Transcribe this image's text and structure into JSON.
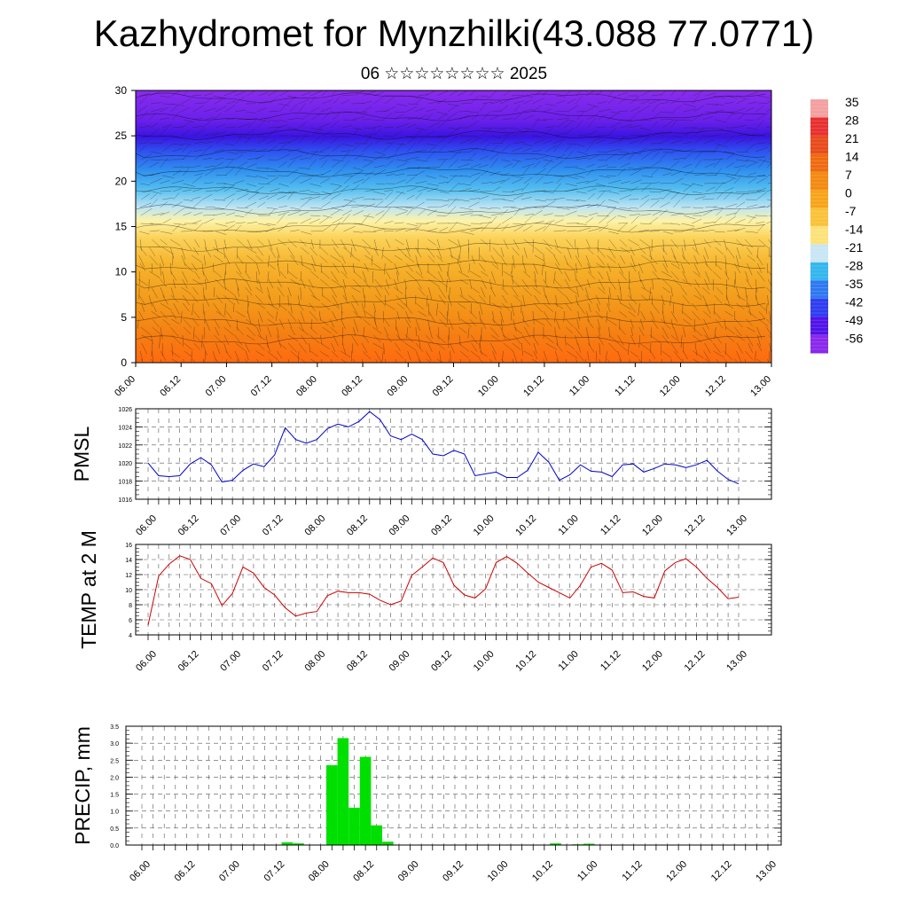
{
  "title": "Kazhydromet for Mynzhilki(43.088 77.0771)",
  "subtitle": "06 ☆☆☆☆☆☆☆☆ 2025",
  "time_labels": [
    "06.00",
    "06.12",
    "07.00",
    "07.12",
    "08.00",
    "08.12",
    "09.00",
    "09.12",
    "10.00",
    "10.12",
    "11.00",
    "11.12",
    "12.00",
    "12.12",
    "13.00"
  ],
  "colorbar": {
    "labels": [
      "35",
      "28",
      "21",
      "14",
      "7",
      "0",
      "-7",
      "-14",
      "-21",
      "-28",
      "-35",
      "-42",
      "-49",
      "-56"
    ],
    "colors": [
      "#f4a0a0",
      "#e83030",
      "#e84a1c",
      "#ef6a10",
      "#f38a12",
      "#f7a41c",
      "#fac23a",
      "#fde27a",
      "#c8e6f4",
      "#34b6ee",
      "#2f78f0",
      "#2f3cf0",
      "#5014e8",
      "#8a28ec"
    ]
  },
  "chart_data": [
    {
      "type": "heatmap",
      "title": "",
      "ylim": [
        0,
        30
      ],
      "yticks": [
        0,
        5,
        10,
        15,
        20,
        25,
        30
      ],
      "x_categories": [
        "06.00",
        "06.12",
        "07.00",
        "07.12",
        "08.00",
        "08.12",
        "09.00",
        "09.12",
        "10.00",
        "10.12",
        "11.00",
        "11.12",
        "12.00",
        "12.12",
        "13.00"
      ],
      "note": "vertical temperature cross-section with wind barbs",
      "colorbar_range": [
        -56,
        35
      ]
    },
    {
      "type": "line",
      "ylabel": "PMSL",
      "ylim": [
        1016,
        1026
      ],
      "yticks": [
        1016,
        1018,
        1020,
        1022,
        1024,
        1026
      ],
      "x_range": [
        0,
        168
      ],
      "color": "#0000cc",
      "series": [
        {
          "values": [
            1020.0,
            1018.6,
            1018.5,
            1018.6,
            1019.9,
            1020.6,
            1019.8,
            1017.9,
            1018.1,
            1019.2,
            1019.9,
            1019.6,
            1020.9,
            1023.9,
            1022.6,
            1022.2,
            1022.6,
            1023.8,
            1024.3,
            1024.0,
            1024.6,
            1025.7,
            1024.8,
            1023.0,
            1022.6,
            1023.2,
            1022.6,
            1021.0,
            1020.8,
            1021.4,
            1021.0,
            1018.6,
            1018.8,
            1019.0,
            1018.4,
            1018.4,
            1019.2,
            1021.2,
            1020.1,
            1018.1,
            1018.7,
            1019.8,
            1019.1,
            1019.0,
            1018.5,
            1019.8,
            1019.9,
            1019.0,
            1019.4,
            1019.9,
            1019.8,
            1019.5,
            1019.8,
            1020.3,
            1019.1,
            1018.2,
            1017.7
          ]
        }
      ]
    },
    {
      "type": "line",
      "ylabel": "TEMP at 2 M",
      "ylim": [
        4,
        16
      ],
      "yticks": [
        4,
        6,
        8,
        10,
        12,
        14,
        16
      ],
      "x_range": [
        0,
        168
      ],
      "color": "#cc0000",
      "series": [
        {
          "values": [
            5.3,
            11.8,
            13.4,
            14.5,
            14.0,
            11.5,
            10.8,
            7.9,
            9.5,
            13.0,
            12.2,
            10.3,
            9.3,
            7.6,
            6.5,
            6.9,
            7.1,
            9.2,
            9.8,
            9.6,
            9.6,
            9.4,
            8.6,
            8.0,
            8.5,
            11.9,
            13.0,
            14.2,
            13.6,
            10.6,
            9.3,
            8.9,
            10.1,
            13.6,
            14.4,
            13.5,
            12.2,
            11.0,
            10.3,
            9.6,
            8.9,
            10.6,
            13.0,
            13.5,
            12.6,
            9.6,
            9.7,
            9.1,
            8.9,
            12.5,
            13.6,
            14.1,
            13.0,
            11.5,
            10.3,
            8.8,
            9.0
          ]
        }
      ]
    },
    {
      "type": "bar",
      "ylabel": "PRECIP, mm",
      "ylim": [
        0,
        3.5
      ],
      "yticks": [
        0.0,
        0.5,
        1.0,
        1.5,
        2.0,
        2.5,
        3.0,
        3.5
      ],
      "x_range": [
        0,
        168
      ],
      "color": "#00e000",
      "bars": [
        {
          "t": 39,
          "v": 0.08
        },
        {
          "t": 42,
          "v": 0.05
        },
        {
          "t": 51,
          "v": 2.35
        },
        {
          "t": 54,
          "v": 3.15
        },
        {
          "t": 57,
          "v": 1.1
        },
        {
          "t": 60,
          "v": 2.6
        },
        {
          "t": 63,
          "v": 0.58
        },
        {
          "t": 66,
          "v": 0.1
        },
        {
          "t": 111,
          "v": 0.05
        },
        {
          "t": 117,
          "v": 0.02
        },
        {
          "t": 120,
          "v": 0.04
        }
      ]
    }
  ]
}
